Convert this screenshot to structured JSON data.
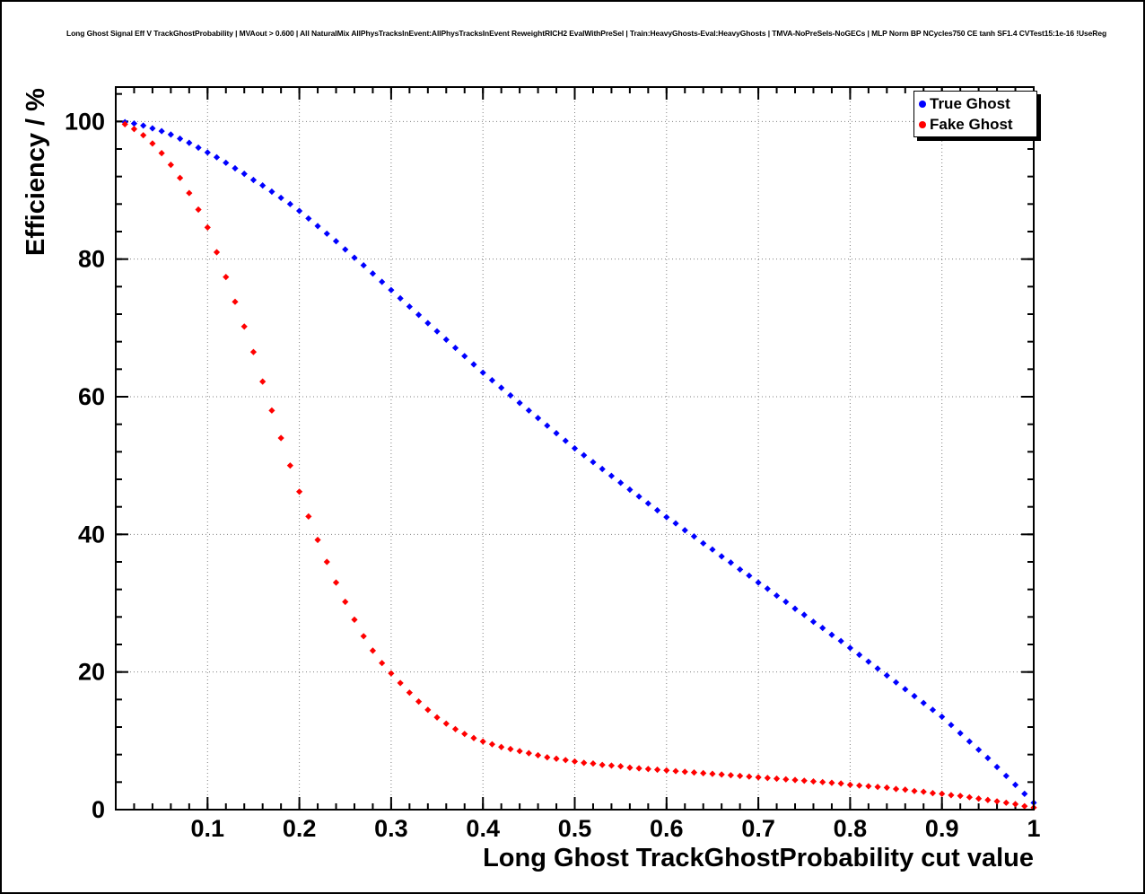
{
  "page": {
    "background": "#ffffff",
    "frame_color": "#000000"
  },
  "title": "Long Ghost Signal Eff V TrackGhostProbability | MVAout > 0.600 | All NaturalMix AllPhysTracksInEvent:AllPhysTracksInEvent ReweightRICH2 EvalWithPreSel | Train:HeavyGhosts-Eval:HeavyGhosts | TMVA-NoPreSels-NoGECs | MLP Norm BP NCycles750 CE tanh SF1.4 CVTest15:1e-16 !UseReg",
  "chart_data": {
    "type": "scatter",
    "title": "Long Ghost Signal Eff V TrackGhostProbability | MVAout > 0.600 | All NaturalMix AllPhysTracksInEvent:AllPhysTracksInEvent ReweightRICH2 EvalWithPreSel | Train:HeavyGhosts-Eval:HeavyGhosts | TMVA-NoPreSels-NoGECs | MLP Norm BP NCycles750 CE tanh SF1.4 CVTest15:1e-16 !UseReg",
    "xlabel": "Long Ghost TrackGhostProbability cut value",
    "ylabel": "Efficiency / %",
    "xlim": [
      0,
      1
    ],
    "ylim": [
      0,
      105
    ],
    "grid": "dotted",
    "legend_position": "top-right",
    "x_major_ticks": [
      0.1,
      0.2,
      0.3,
      0.4,
      0.5,
      0.6,
      0.7,
      0.8,
      0.9,
      1
    ],
    "x_tick_labels": [
      "0.1",
      "0.2",
      "0.3",
      "0.4",
      "0.5",
      "0.6",
      "0.7",
      "0.8",
      "0.9",
      "1"
    ],
    "y_major_ticks": [
      0,
      20,
      40,
      60,
      80,
      100
    ],
    "y_tick_labels": [
      "0",
      "20",
      "40",
      "60",
      "80",
      "100"
    ],
    "x_minor_step": 0.02,
    "y_minor_step": 4,
    "marker": "diamond",
    "x": [
      0.01,
      0.02,
      0.03,
      0.04,
      0.05,
      0.06,
      0.07,
      0.08,
      0.09,
      0.1,
      0.11,
      0.12,
      0.13,
      0.14,
      0.15,
      0.16,
      0.17,
      0.18,
      0.19,
      0.2,
      0.21,
      0.22,
      0.23,
      0.24,
      0.25,
      0.26,
      0.27,
      0.28,
      0.29,
      0.3,
      0.31,
      0.32,
      0.33,
      0.34,
      0.35,
      0.36,
      0.37,
      0.38,
      0.39,
      0.4,
      0.41,
      0.42,
      0.43,
      0.44,
      0.45,
      0.46,
      0.47,
      0.48,
      0.49,
      0.5,
      0.51,
      0.52,
      0.53,
      0.54,
      0.55,
      0.56,
      0.57,
      0.58,
      0.59,
      0.6,
      0.61,
      0.62,
      0.63,
      0.64,
      0.65,
      0.66,
      0.67,
      0.68,
      0.69,
      0.7,
      0.71,
      0.72,
      0.73,
      0.74,
      0.75,
      0.76,
      0.77,
      0.78,
      0.79,
      0.8,
      0.81,
      0.82,
      0.83,
      0.84,
      0.85,
      0.86,
      0.87,
      0.88,
      0.89,
      0.9,
      0.91,
      0.92,
      0.93,
      0.94,
      0.95,
      0.96,
      0.97,
      0.98,
      0.99,
      1.0
    ],
    "series": [
      {
        "name": "True Ghost",
        "color": "#0000ff",
        "values": [
          99.9,
          99.7,
          99.4,
          99.0,
          98.6,
          98.1,
          97.5,
          96.9,
          96.2,
          95.5,
          94.8,
          94.0,
          93.2,
          92.4,
          91.5,
          90.7,
          89.8,
          88.9,
          88.0,
          87.0,
          85.9,
          84.8,
          83.7,
          82.6,
          81.4,
          80.2,
          79.1,
          77.9,
          76.7,
          75.5,
          74.3,
          73.1,
          71.9,
          70.7,
          69.5,
          68.3,
          67.1,
          65.9,
          64.7,
          63.5,
          62.4,
          61.3,
          60.2,
          59.1,
          58.0,
          56.9,
          55.8,
          54.7,
          53.6,
          52.5,
          51.5,
          50.5,
          49.5,
          48.5,
          47.5,
          46.5,
          45.5,
          44.5,
          43.5,
          42.5,
          41.6,
          40.6,
          39.7,
          38.7,
          37.8,
          36.8,
          35.9,
          34.9,
          34.0,
          33.0,
          32.1,
          31.1,
          30.2,
          29.2,
          28.3,
          27.3,
          26.4,
          25.4,
          24.5,
          23.5,
          22.5,
          21.5,
          20.5,
          19.5,
          18.5,
          17.5,
          16.5,
          15.5,
          14.5,
          13.5,
          12.3,
          11.1,
          9.9,
          8.7,
          7.5,
          6.2,
          4.9,
          3.6,
          2.3,
          1.0
        ]
      },
      {
        "name": "Fake Ghost",
        "color": "#ff0000",
        "values": [
          99.6,
          98.9,
          98.0,
          96.8,
          95.4,
          93.7,
          91.8,
          89.6,
          87.2,
          84.6,
          81.0,
          77.4,
          73.8,
          70.2,
          66.5,
          62.2,
          58.0,
          54.0,
          50.0,
          46.2,
          42.6,
          39.2,
          36.0,
          33.0,
          30.2,
          27.6,
          25.2,
          23.1,
          21.3,
          19.8,
          18.4,
          17.0,
          15.7,
          14.5,
          13.4,
          12.5,
          11.7,
          11.0,
          10.4,
          9.9,
          9.5,
          9.1,
          8.8,
          8.5,
          8.2,
          7.9,
          7.6,
          7.4,
          7.2,
          7.0,
          6.8,
          6.7,
          6.5,
          6.4,
          6.3,
          6.1,
          6.0,
          5.9,
          5.8,
          5.7,
          5.6,
          5.5,
          5.4,
          5.3,
          5.2,
          5.1,
          5.0,
          4.9,
          4.8,
          4.7,
          4.6,
          4.5,
          4.4,
          4.3,
          4.2,
          4.1,
          4.0,
          3.9,
          3.8,
          3.6,
          3.5,
          3.4,
          3.3,
          3.2,
          3.0,
          2.9,
          2.7,
          2.6,
          2.4,
          2.3,
          2.1,
          2.0,
          1.8,
          1.6,
          1.4,
          1.2,
          1.0,
          0.8,
          0.5,
          0.3
        ]
      }
    ]
  }
}
